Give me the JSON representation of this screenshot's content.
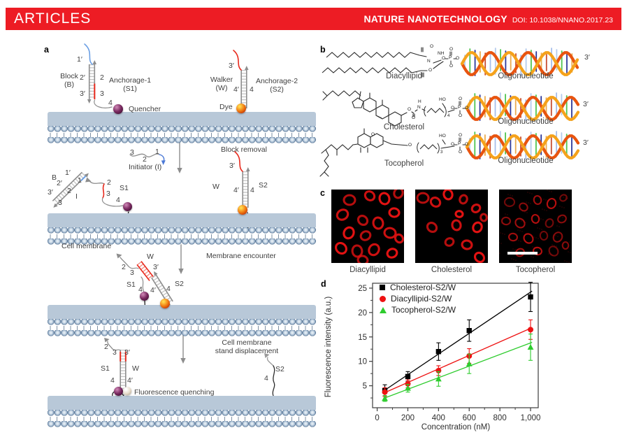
{
  "header": {
    "articles": "ARTICLES",
    "journal": "NATURE NANOTECHNOLOGY",
    "doi": "DOI: 10.1038/NNANO.2017.23"
  },
  "colors": {
    "banner_red": "#ed1c24",
    "membrane_blue": "#93acc6",
    "quencher_purple": "#5e1d4b",
    "dye_orange": "#f07114",
    "strand_red": "#e8291c",
    "strand_blue": "#6b9fe4",
    "micrograph_red": "#e21212"
  },
  "panel_a": {
    "label": "a",
    "stage1": {
      "prime1": "1′",
      "block": "Block\n(B)",
      "prime2": "2′",
      "prime3": "3′",
      "n2": "2",
      "n3": "3",
      "n4": "4",
      "anchorage1": "Anchorage-1\n(S1)",
      "quencher": "Quencher",
      "w_prime3": "3′",
      "walker": "Walker\n(W)",
      "w_prime4": "4′",
      "w_n4": "4",
      "anchorage2": "Anchorage-2\n(S2)",
      "dye": "Dye"
    },
    "stage2": {
      "block_removal": "Block removal",
      "i_n3": "3",
      "i_n2": "2",
      "i_n1": "1",
      "initiator": "Initiator (I)",
      "b": "B",
      "b_p1": "1′",
      "b_p2": "2′",
      "b_p3": "3′",
      "b_n1": "1",
      "b_n2": "2",
      "b_n3": "3",
      "i": "I",
      "s1_n2": "2",
      "s1_n3": "3",
      "s1_n4": "4",
      "s1": "S1",
      "w_p3": "3′",
      "w": "W",
      "w_p4": "4′",
      "w_n4": "4",
      "s2": "S2",
      "cell_membrane": "Cell membrane"
    },
    "stage3": {
      "membrane_encounter": "Membrane encounter",
      "n2": "2",
      "n3": "3",
      "w": "W",
      "p3": "3′",
      "s1": "S1",
      "n4a": "4",
      "p4": "4′",
      "n4b": "4",
      "s2": "S2"
    },
    "stage4": {
      "displacement": "Cell membrane\nstand displacement",
      "n2": "2",
      "n3": "3",
      "p3": "3′",
      "s1": "S1",
      "w": "W",
      "n4": "4",
      "p4": "4′",
      "quenching": "Fluorescence quenching",
      "n4b": "4",
      "s2": "S2"
    }
  },
  "panel_b": {
    "label": "b",
    "rows": [
      {
        "name": "Diacyllipid",
        "oligo": "Oligonucleotide",
        "prime": "3′",
        "atoms": {
          "o1": "O",
          "nh": "NH",
          "n": "N",
          "o2": "O",
          "po_top": "O",
          "p": "P",
          "po_bot": "O",
          "po_left": "O",
          "po_right": "O"
        }
      },
      {
        "name": "Cholesterol",
        "oligo": "Oligonucleotide",
        "prime": "3′",
        "atoms": {
          "o1": "O",
          "h": "H",
          "n": "N",
          "o2": "O",
          "ho": "HO",
          "sub": "4",
          "po_top": "O",
          "p": "P",
          "po_bot": "O",
          "po_left": "O",
          "po_right": "O"
        }
      },
      {
        "name": "Tocopherol",
        "oligo": "Oligonucleotide",
        "prime": "3′",
        "atoms": {
          "ring_o": "O",
          "o1": "O",
          "ho": "HO",
          "sub": "3",
          "po_top": "O",
          "p": "P",
          "po_bot": "O",
          "po_left": "O",
          "po_right": "O"
        }
      }
    ]
  },
  "panel_c": {
    "label": "c",
    "images": [
      {
        "caption": "Diacyllipid"
      },
      {
        "caption": "Cholesterol"
      },
      {
        "caption": "Tocopherol"
      }
    ]
  },
  "panel_d": {
    "label": "d"
  },
  "chart_data": {
    "type": "scatter",
    "title": "",
    "xlabel": "Concentration (nM)",
    "ylabel": "Fluorescence intensity (a.u.)",
    "xlim": [
      -30,
      1050
    ],
    "ylim": [
      0.5,
      26
    ],
    "grid": false,
    "legend_position": "top-left",
    "xticks": {
      "values": [
        0,
        200,
        400,
        600,
        800,
        1000
      ],
      "labels": [
        "0",
        "200",
        "400",
        "600",
        "800",
        "1,000"
      ],
      "minor_step": 100
    },
    "yticks": {
      "values": [
        5,
        10,
        15,
        20,
        25
      ],
      "labels": [
        "5",
        "10",
        "15",
        "20",
        "25"
      ],
      "minor_step": 2.5
    },
    "x": [
      50,
      200,
      400,
      600,
      1000
    ],
    "series": [
      {
        "name": "Cholesterol-S2/W",
        "marker": "square",
        "color": "#000000",
        "values": [
          4.0,
          6.9,
          12.0,
          16.3,
          23.2
        ],
        "err": [
          1.2,
          1.0,
          1.8,
          2.2,
          3.0
        ],
        "fit": {
          "x": [
            50,
            1010
          ],
          "y": [
            4.1,
            24.4
          ]
        }
      },
      {
        "name": "Diacyllipid-S2/W",
        "marker": "circle",
        "color": "#ee1111",
        "values": [
          3.7,
          5.4,
          8.1,
          11.1,
          16.5
        ],
        "err": [
          0.9,
          0.8,
          1.0,
          1.5,
          2.0
        ],
        "fit": {
          "x": [
            50,
            1010
          ],
          "y": [
            3.6,
            16.9
          ]
        }
      },
      {
        "name": "Tocopherol-S2/W",
        "marker": "triangle",
        "color": "#2ecc2e",
        "values": [
          2.4,
          4.5,
          6.4,
          9.5,
          12.9
        ],
        "err": [
          0.6,
          0.8,
          1.5,
          2.0,
          2.7
        ],
        "fit": {
          "x": [
            50,
            1010
          ],
          "y": [
            2.5,
            13.9
          ]
        }
      }
    ]
  }
}
